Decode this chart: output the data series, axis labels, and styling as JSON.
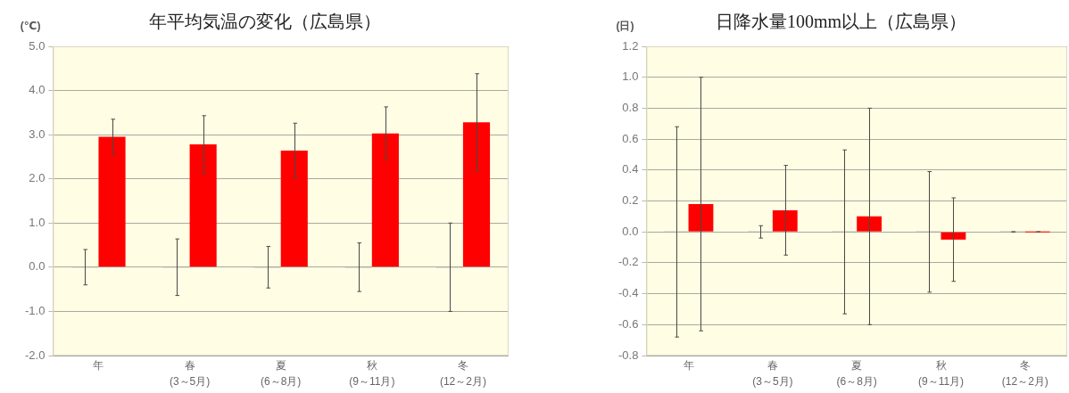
{
  "chart_data": [
    {
      "type": "bar",
      "title": "年平均気温の変化（広島県）",
      "ylabel": "(℃)",
      "categories": [
        "年",
        "春\n(3～5月)",
        "夏\n(6～8月)",
        "秋\n(9～11月)",
        "冬\n(12～2月)"
      ],
      "series": [
        {
          "color": "#a9a9a0",
          "values": [
            0,
            0,
            0,
            0,
            0
          ],
          "errors": [
            0.4,
            0.64,
            0.47,
            0.55,
            1.0
          ]
        },
        {
          "color": "#ff0000",
          "values": [
            2.95,
            2.78,
            2.64,
            3.03,
            3.28
          ],
          "errors": [
            0.4,
            0.65,
            0.62,
            0.6,
            1.1
          ]
        }
      ],
      "ylim": [
        -2,
        5
      ],
      "yticks": [
        {
          "value": -2,
          "label": "-2.0"
        },
        {
          "value": -1,
          "label": "-1.0"
        },
        {
          "value": 0,
          "label": "0.0"
        },
        {
          "value": 1,
          "label": "1.0"
        },
        {
          "value": 2,
          "label": "2.0"
        },
        {
          "value": 3,
          "label": "3.0"
        },
        {
          "value": 4,
          "label": "4.0"
        },
        {
          "value": 5,
          "label": "5.0"
        }
      ],
      "grid": "y"
    },
    {
      "type": "bar",
      "title": "日降水量100mm以上（広島県）",
      "ylabel": "(日)",
      "categories": [
        "年",
        "春\n(3～5月)",
        "夏\n(6～8月)",
        "秋\n(9～11月)",
        "冬\n(12～2月)"
      ],
      "series": [
        {
          "color": "#a9a9a0",
          "values": [
            0,
            0,
            0,
            0,
            0
          ],
          "errors": [
            0.68,
            0.04,
            0.53,
            0.39,
            0
          ]
        },
        {
          "color": "#ff0000",
          "values": [
            0.18,
            0.14,
            0.1,
            -0.05,
            0
          ],
          "errors": [
            0.82,
            0.29,
            0.7,
            0.27,
            0
          ]
        }
      ],
      "ylim": [
        -0.8,
        1.2
      ],
      "yticks": [
        {
          "value": -0.8,
          "label": "-0.8"
        },
        {
          "value": -0.6,
          "label": "-0.6"
        },
        {
          "value": -0.4,
          "label": "-0.4"
        },
        {
          "value": -0.2,
          "label": "-0.2"
        },
        {
          "value": 0,
          "label": "0.0"
        },
        {
          "value": 0.2,
          "label": "0.2"
        },
        {
          "value": 0.4,
          "label": "0.4"
        },
        {
          "value": 0.6,
          "label": "0.6"
        },
        {
          "value": 0.8,
          "label": "0.8"
        },
        {
          "value": 1,
          "label": "1.0"
        },
        {
          "value": 1.2,
          "label": "1.2"
        }
      ],
      "grid": "y"
    }
  ]
}
